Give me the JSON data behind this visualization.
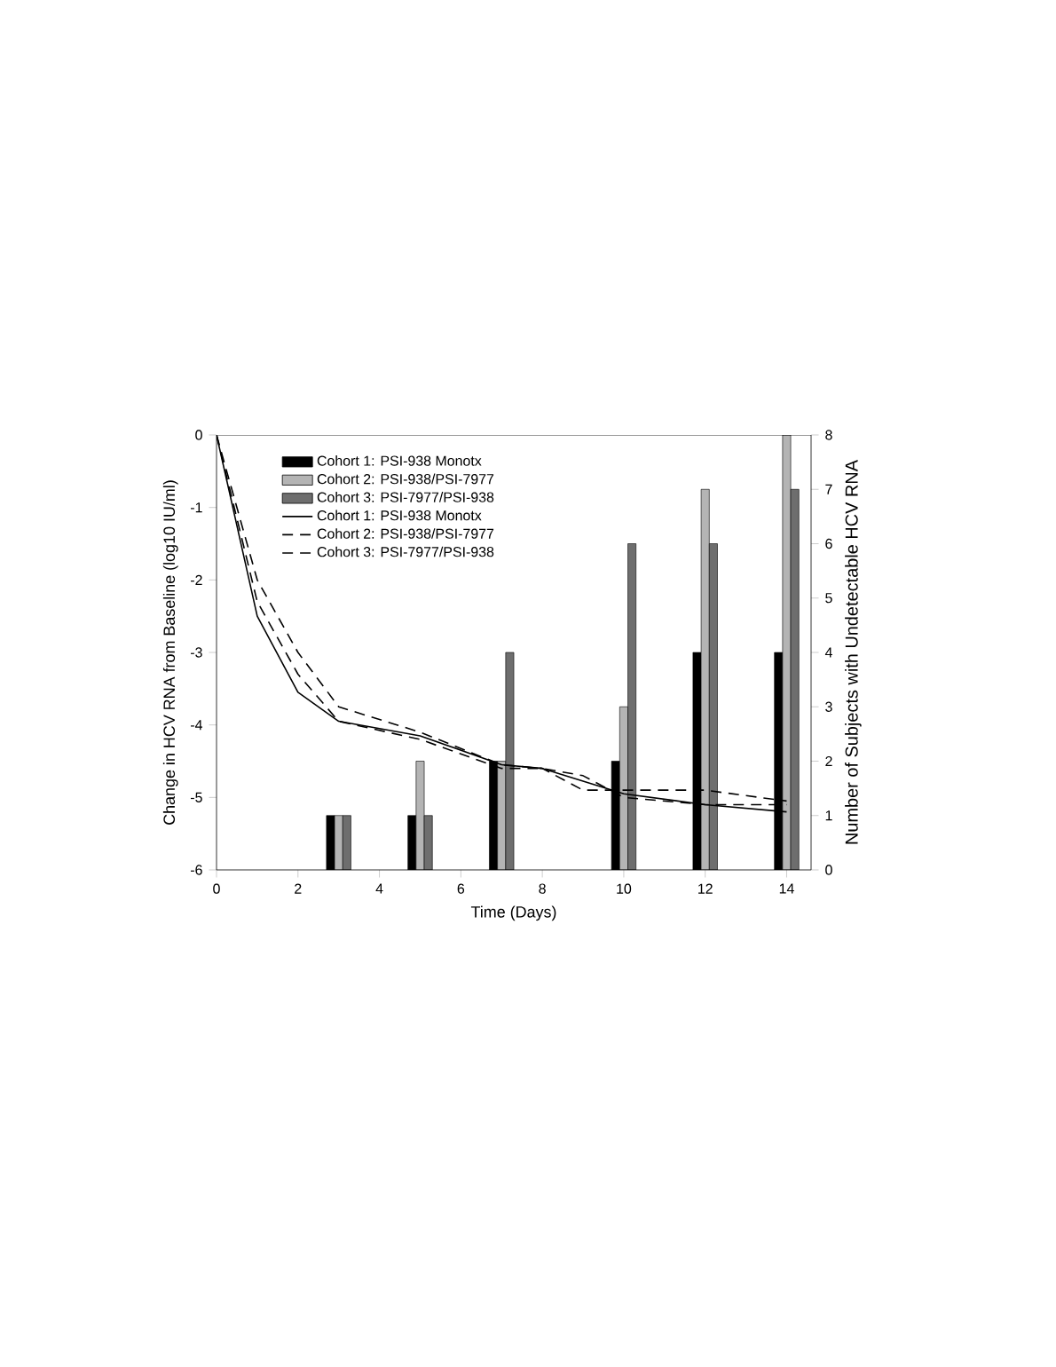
{
  "chart_data": {
    "type": "bar",
    "xlabel": "Time (Days)",
    "ylabel": "Change in HCV RNA from Baseline (log10 IU/ml)",
    "y2label": "Number of Subjects with Undetectable HCV RNA",
    "xlim": [
      0,
      14.6
    ],
    "xticks": [
      0,
      2,
      4,
      6,
      8,
      10,
      12,
      14
    ],
    "ylim": [
      -6,
      0
    ],
    "yticks": [
      -6,
      -5,
      -4,
      -3,
      -2,
      -1,
      0
    ],
    "y2lim": [
      0,
      8
    ],
    "y2ticks": [
      0,
      1,
      2,
      3,
      4,
      5,
      6,
      7,
      8
    ],
    "legend": "top left",
    "marker": "none",
    "grid": false,
    "series": [
      {
        "name": "Cohort 1: PSI-938 Monotx",
        "axis": "y2",
        "color": "#000000",
        "x": [
          3,
          5,
          7,
          10,
          12,
          14
        ],
        "values": [
          1,
          1,
          2,
          2,
          4,
          4
        ]
      },
      {
        "name": "Cohort 2: PSI-938/PSI-7977",
        "axis": "y2",
        "color": "#b4b4b4",
        "x": [
          3,
          5,
          7,
          10,
          12,
          14
        ],
        "values": [
          1,
          2,
          2,
          3,
          7,
          8
        ]
      },
      {
        "name": "Cohort 3: PSI-7977/PSI-938",
        "axis": "y2",
        "color": "#6e6e6e",
        "x": [
          3,
          5,
          7,
          10,
          12,
          14
        ],
        "values": [
          1,
          1,
          4,
          6,
          6,
          7
        ]
      },
      {
        "name": "Cohort 1: PSI-938 Monotx",
        "type": "line",
        "color": "#000000",
        "line_style": "solid",
        "x": [
          0,
          1,
          2,
          3,
          5,
          7,
          8,
          10,
          12,
          14
        ],
        "values": [
          0,
          -2.5,
          -3.55,
          -3.95,
          -4.15,
          -4.55,
          -4.6,
          -4.95,
          -5.1,
          -5.2
        ]
      },
      {
        "name": "Cohort 2: PSI-938/PSI-7977",
        "type": "line",
        "color": "#000000",
        "line_style": "dashed",
        "x": [
          0,
          1,
          2,
          3,
          5,
          7,
          8,
          9,
          10,
          12,
          14
        ],
        "values": [
          0,
          -2.0,
          -3.0,
          -3.75,
          -4.1,
          -4.55,
          -4.6,
          -4.9,
          -4.9,
          -4.9,
          -5.05
        ]
      },
      {
        "name": "Cohort 3: PSI-7977/PSI-938",
        "type": "line",
        "color": "#000000",
        "line_style": "dashed",
        "x": [
          0,
          1,
          2,
          3,
          5,
          7,
          8,
          9,
          10,
          12,
          14
        ],
        "values": [
          0,
          -2.3,
          -3.3,
          -3.95,
          -4.2,
          -4.6,
          -4.6,
          -4.7,
          -5.0,
          -5.1,
          -5.1
        ]
      }
    ]
  }
}
